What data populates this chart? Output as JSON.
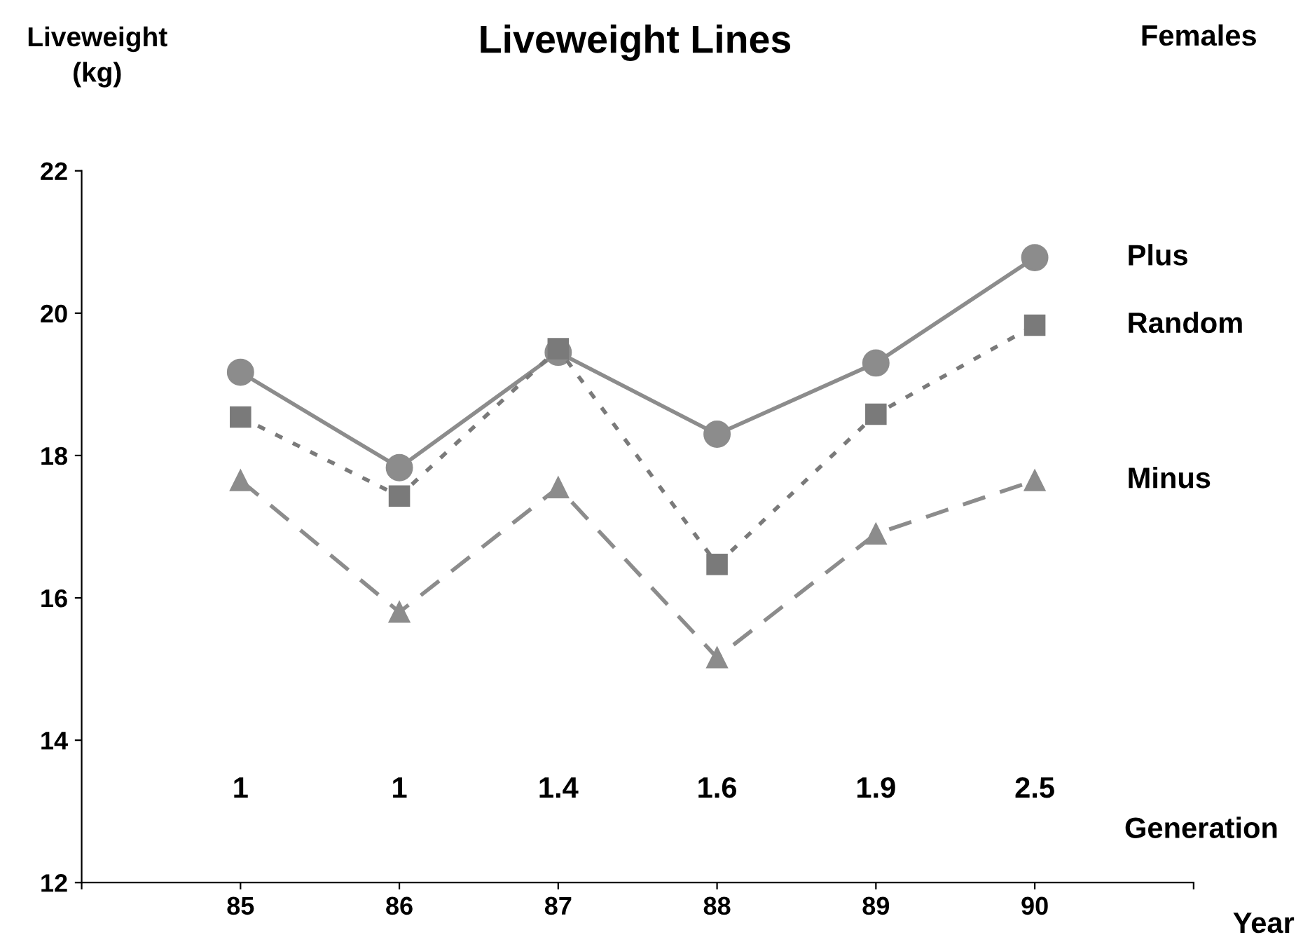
{
  "chart_data": {
    "type": "line",
    "title": "Liveweight Lines",
    "subtitle": "Females",
    "ylabel": "Liveweight\n(kg)",
    "xlabel": "Year",
    "x": [
      85,
      86,
      87,
      88,
      89,
      90
    ],
    "series": [
      {
        "name": "Plus",
        "color": "#8c8c8c",
        "marker": "circle",
        "line_style": "solid",
        "values": [
          19.17,
          17.83,
          19.45,
          18.3,
          19.3,
          20.78
        ]
      },
      {
        "name": "Random",
        "color": "#7a7a7a",
        "marker": "square",
        "line_style": "dotted",
        "values": [
          18.54,
          17.43,
          19.5,
          16.47,
          18.58,
          19.83
        ]
      },
      {
        "name": "Minus",
        "color": "#8c8c8c",
        "marker": "triangle",
        "line_style": "dashed",
        "values": [
          17.65,
          15.8,
          17.55,
          15.16,
          16.9,
          17.65
        ]
      }
    ],
    "annotations": [
      "1",
      "1",
      "1.4",
      "1.6",
      "1.9",
      "2.5",
      "Generation"
    ],
    "xlim": [
      84,
      91
    ],
    "xticks": [
      {
        "value": 84,
        "label": null
      },
      85,
      86,
      87,
      88,
      89,
      90,
      {
        "value": 91,
        "label": null
      }
    ],
    "ylim": [
      12,
      22
    ],
    "yticks": [
      12,
      14,
      16,
      18,
      20,
      22
    ],
    "grid": false,
    "legend": false
  }
}
